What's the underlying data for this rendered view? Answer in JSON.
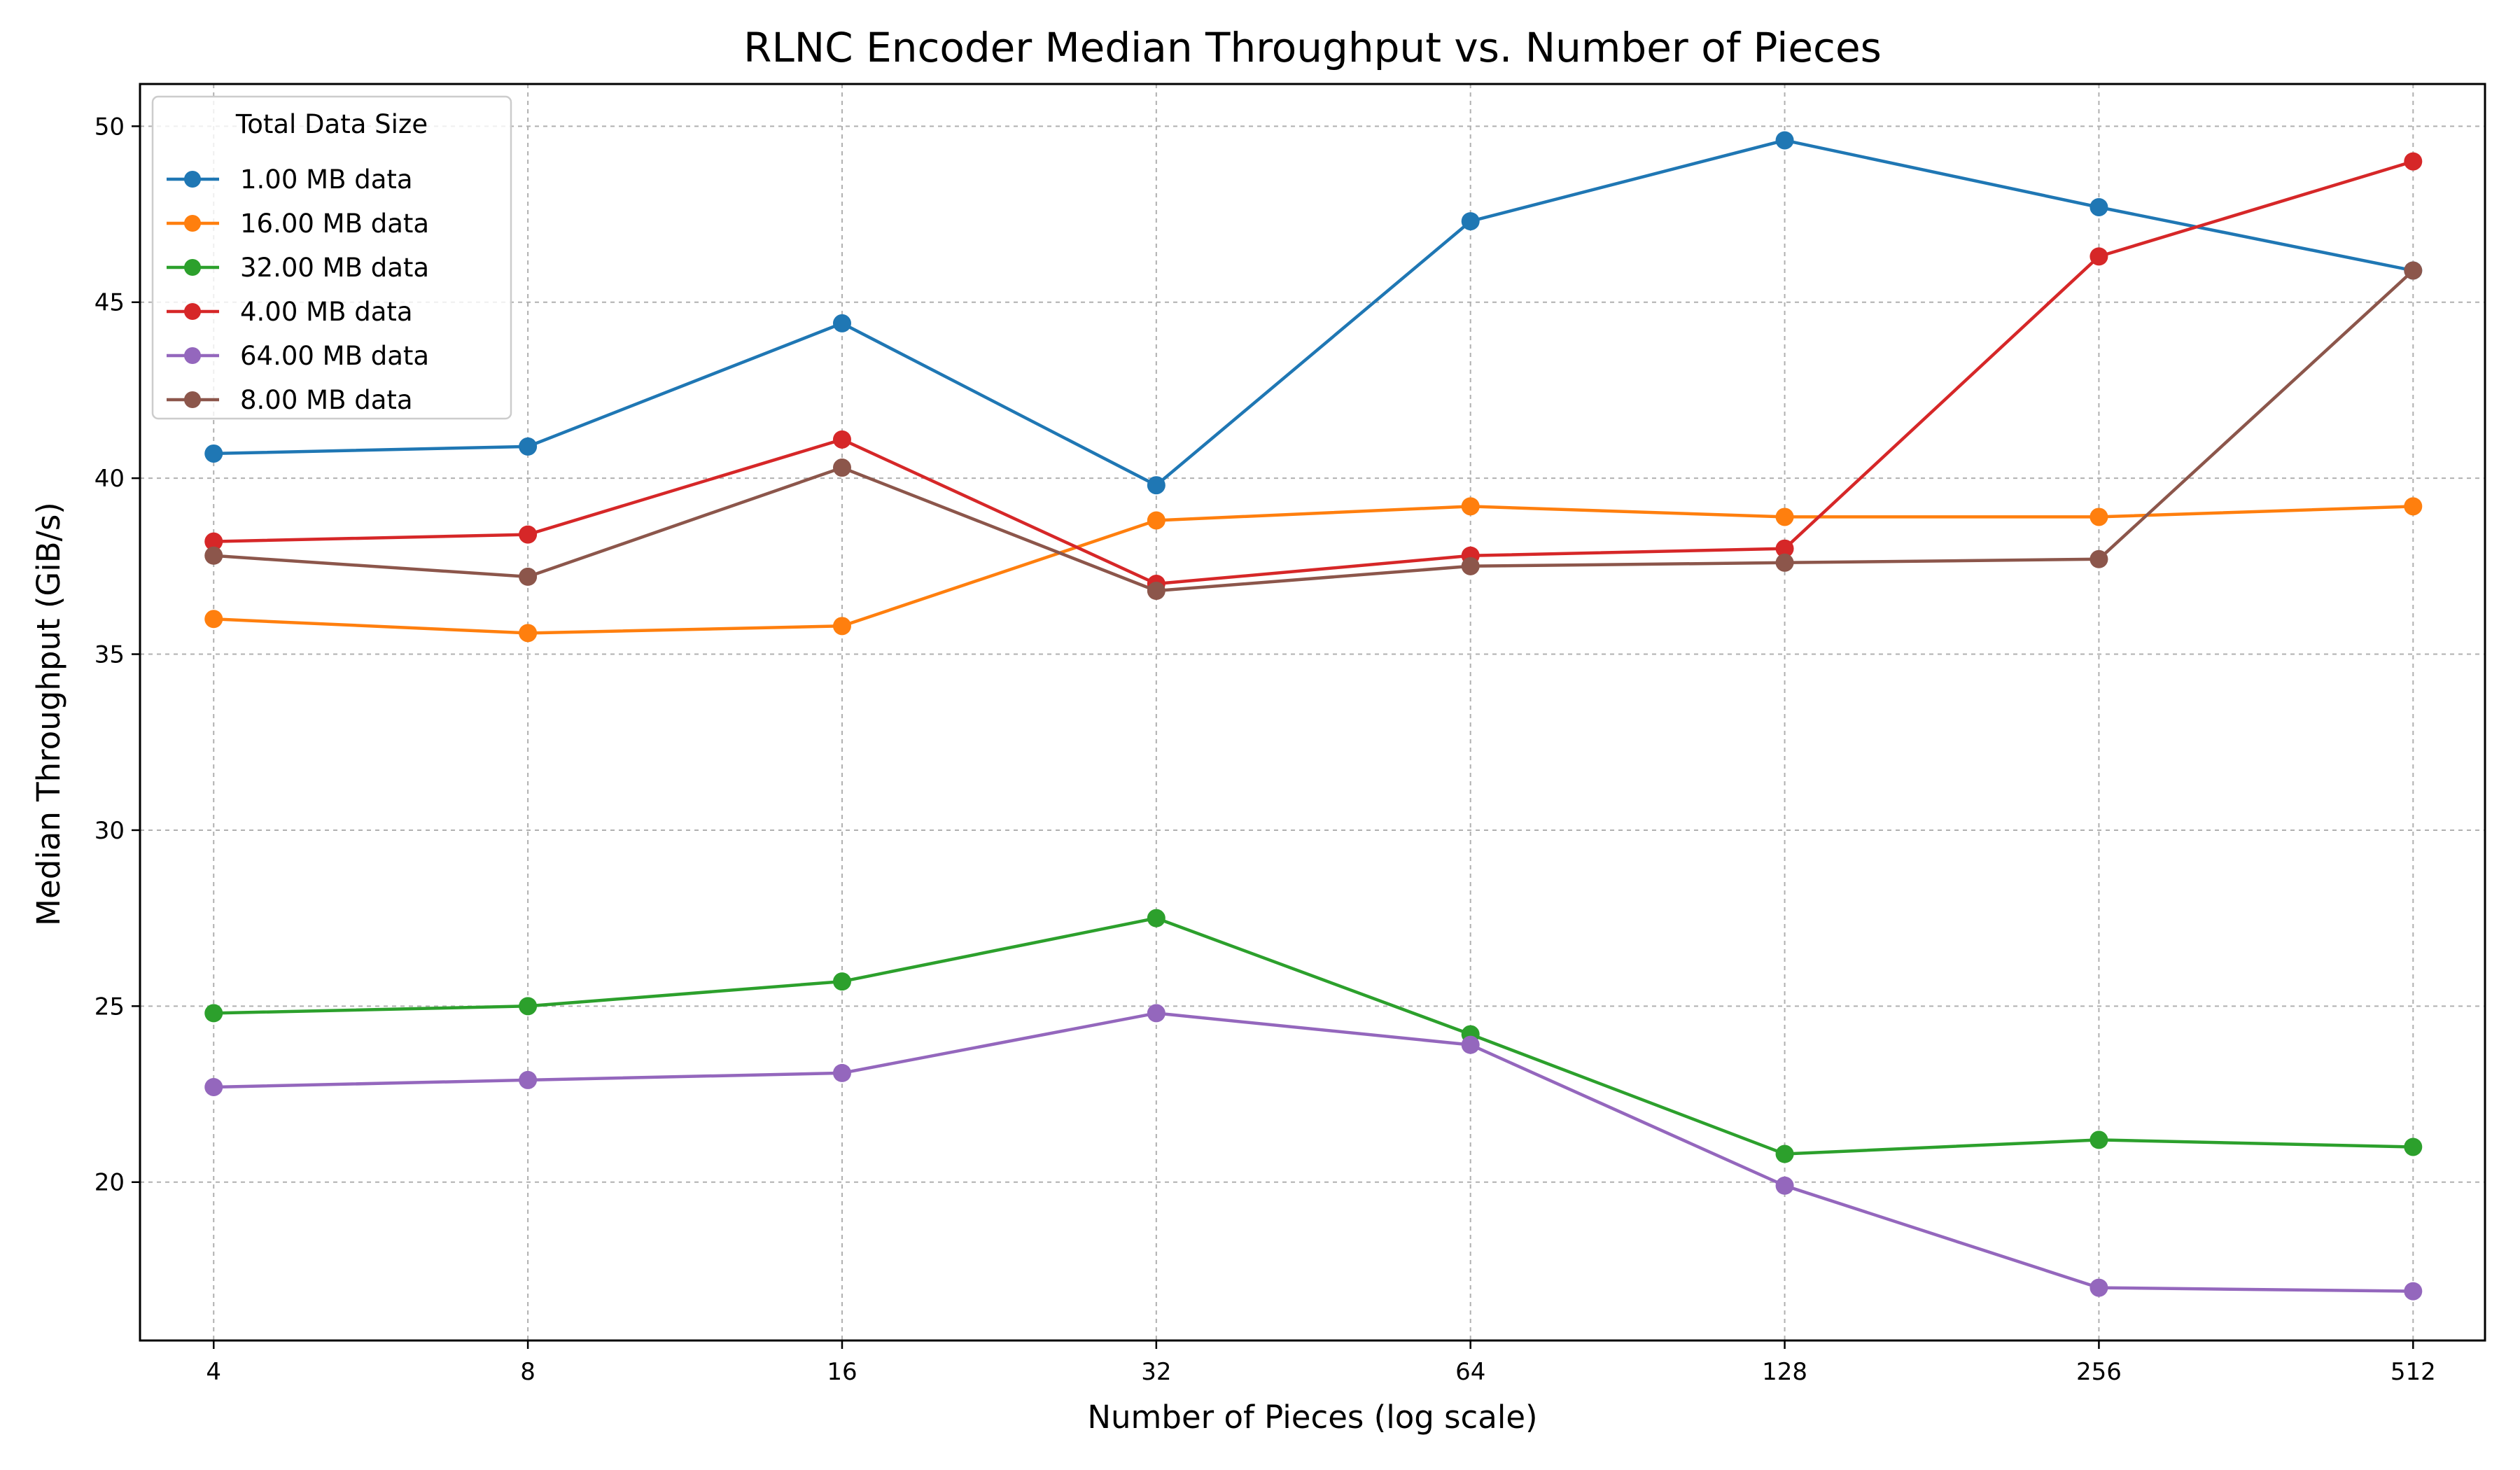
{
  "chart_data": {
    "type": "line",
    "title": "RLNC Encoder Median Throughput vs. Number of Pieces",
    "xlabel": "Number of Pieces (log scale)",
    "ylabel": "Median Throughput (GiB/s)",
    "x_scale": "log2",
    "x": [
      4,
      8,
      16,
      32,
      64,
      128,
      256,
      512
    ],
    "x_tick_labels": [
      "4",
      "8",
      "16",
      "32",
      "64",
      "128",
      "256",
      "512"
    ],
    "xlim": [
      3.4,
      600
    ],
    "ylim": [
      15.5,
      51.2
    ],
    "y_ticks": [
      20,
      25,
      30,
      35,
      40,
      45,
      50
    ],
    "grid": true,
    "legend_title": "Total Data Size",
    "legend_placement": "top-left",
    "series": [
      {
        "name": "1.00 MB data",
        "color": "#1f77b4",
        "values": [
          40.7,
          40.9,
          44.4,
          39.8,
          47.3,
          49.6,
          47.7,
          45.9
        ]
      },
      {
        "name": "16.00 MB data",
        "color": "#ff7f0e",
        "values": [
          36.0,
          35.6,
          35.8,
          38.8,
          39.2,
          38.9,
          38.9,
          39.2
        ]
      },
      {
        "name": "32.00 MB data",
        "color": "#2ca02c",
        "values": [
          24.8,
          25.0,
          25.7,
          27.5,
          24.2,
          20.8,
          21.2,
          21.0
        ]
      },
      {
        "name": "4.00 MB data",
        "color": "#d62728",
        "values": [
          38.2,
          38.4,
          41.1,
          37.0,
          37.8,
          38.0,
          46.3,
          49.0
        ]
      },
      {
        "name": "64.00 MB data",
        "color": "#9467bd",
        "values": [
          22.7,
          22.9,
          23.1,
          24.8,
          23.9,
          19.9,
          17.0,
          16.9
        ]
      },
      {
        "name": "8.00 MB data",
        "color": "#8c564b",
        "values": [
          37.8,
          37.2,
          40.3,
          36.8,
          37.5,
          37.6,
          37.7,
          45.9
        ]
      }
    ]
  }
}
